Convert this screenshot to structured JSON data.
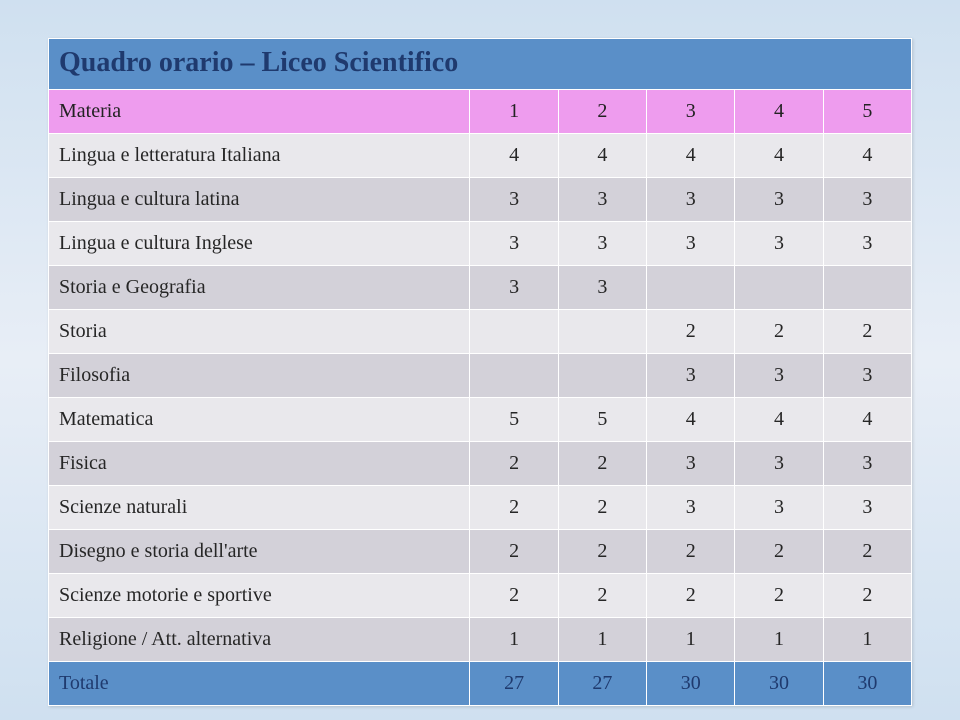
{
  "title": "Quadro orario – Liceo Scientifico",
  "header": {
    "label": "Materia",
    "cols": [
      "1",
      "2",
      "3",
      "4",
      "5"
    ]
  },
  "rows": [
    {
      "label": "Lingua e letteratura Italiana",
      "vals": [
        "4",
        "4",
        "4",
        "4",
        "4"
      ]
    },
    {
      "label": "Lingua e cultura latina",
      "vals": [
        "3",
        "3",
        "3",
        "3",
        "3"
      ]
    },
    {
      "label": "Lingua e cultura Inglese",
      "vals": [
        "3",
        "3",
        "3",
        "3",
        "3"
      ]
    },
    {
      "label": "Storia e Geografia",
      "vals": [
        "3",
        "3",
        "",
        "",
        ""
      ]
    },
    {
      "label": "Storia",
      "vals": [
        "",
        "",
        "2",
        "2",
        "2"
      ]
    },
    {
      "label": "Filosofia",
      "vals": [
        "",
        "",
        "3",
        "3",
        "3"
      ]
    },
    {
      "label": "Matematica",
      "vals": [
        "5",
        "5",
        "4",
        "4",
        "4"
      ]
    },
    {
      "label": "Fisica",
      "vals": [
        "2",
        "2",
        "3",
        "3",
        "3"
      ]
    },
    {
      "label": "Scienze naturali",
      "vals": [
        "2",
        "2",
        "3",
        "3",
        "3"
      ]
    },
    {
      "label": "Disegno e storia dell'arte",
      "vals": [
        "2",
        "2",
        "2",
        "2",
        "2"
      ]
    },
    {
      "label": "Scienze motorie e sportive",
      "vals": [
        "2",
        "2",
        "2",
        "2",
        "2"
      ]
    },
    {
      "label": "Religione / Att. alternativa",
      "vals": [
        "1",
        "1",
        "1",
        "1",
        "1"
      ]
    }
  ],
  "total": {
    "label": "Totale",
    "vals": [
      "27",
      "27",
      "30",
      "30",
      "30"
    ]
  },
  "colors": {
    "title_bg": "#5a8fc8",
    "title_text": "#1f3a6e",
    "header_bg": "#ee9cee",
    "header_text": "#222222",
    "row_alt1": "#e9e8ec",
    "row_alt2": "#d3d1d9",
    "body_text": "#262626",
    "total_bg": "#5a8fc8",
    "total_text": "#1f3a6e",
    "border": "#ffffff"
  },
  "fontsizes": {
    "title": 28,
    "body": 20
  }
}
